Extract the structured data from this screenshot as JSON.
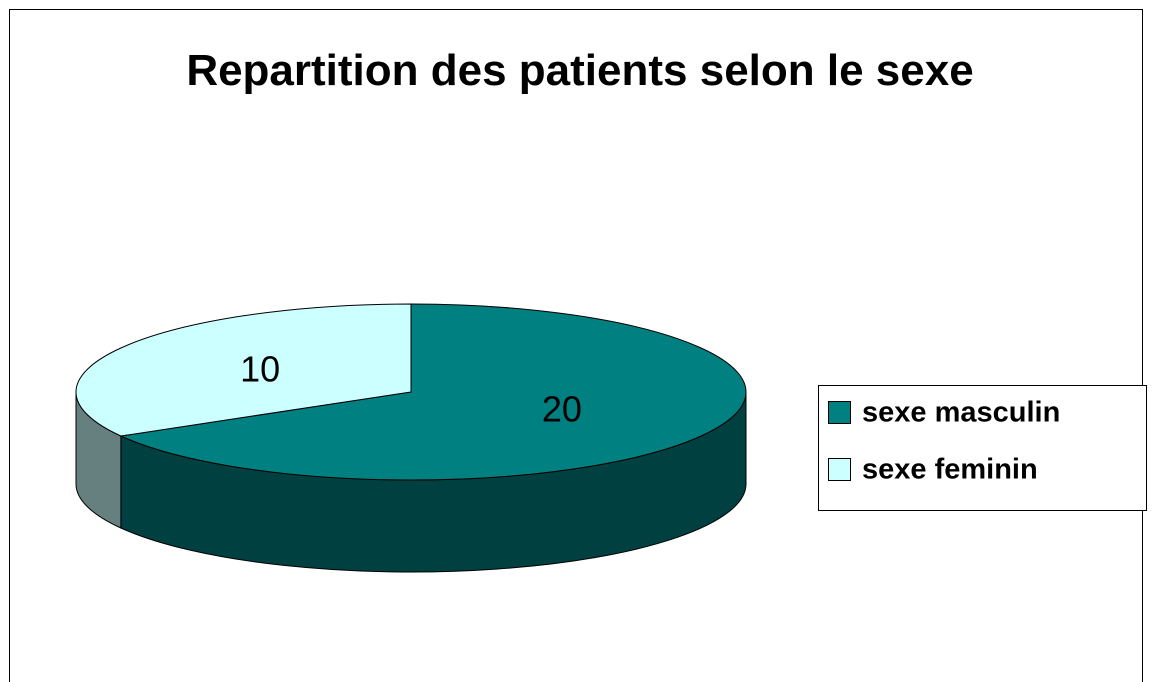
{
  "chart_data": {
    "type": "pie3d",
    "title": "Repartition des patients selon le sexe",
    "categories": [
      "sexe masculin",
      "sexe feminin"
    ],
    "values": [
      20,
      10
    ],
    "colors": [
      "#008080",
      "#ccffff"
    ],
    "legend": "right"
  }
}
